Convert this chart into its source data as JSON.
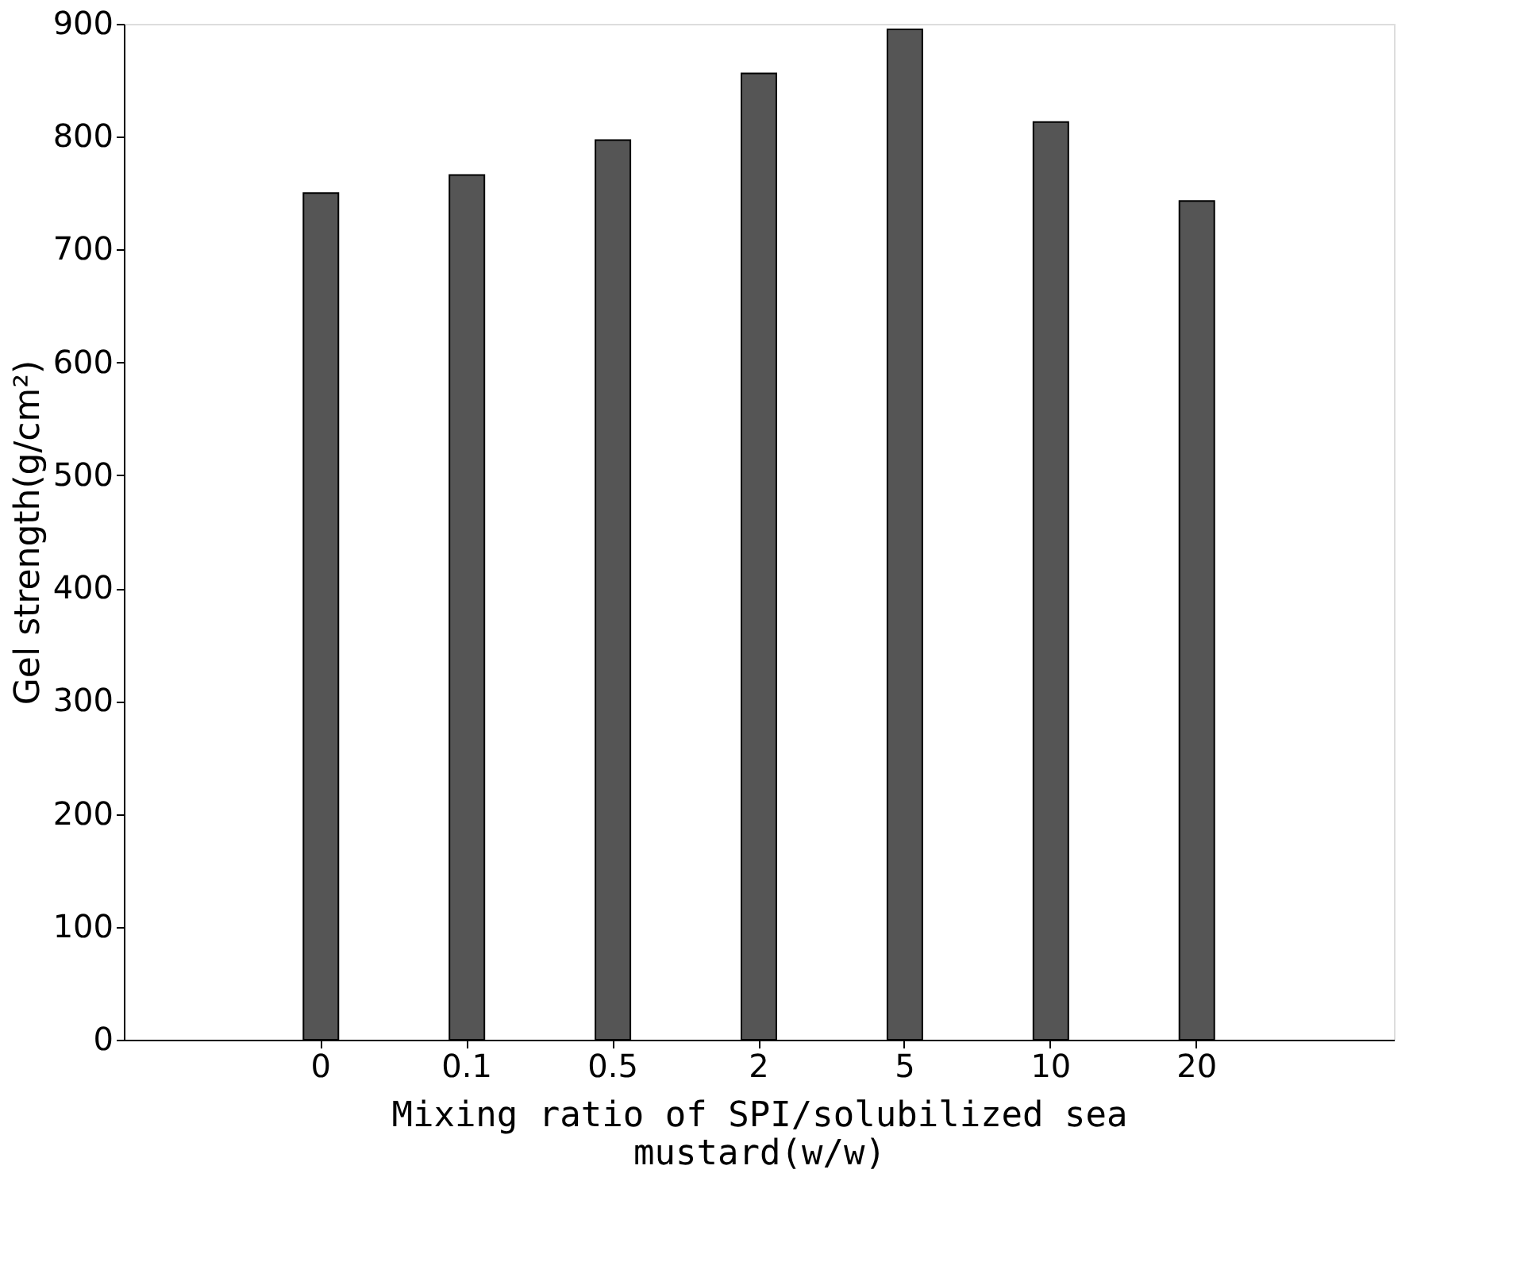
{
  "chart_data": {
    "type": "bar",
    "categories": [
      "0",
      "0.1",
      "0.5",
      "2",
      "5",
      "10",
      "20"
    ],
    "values": [
      750,
      766,
      797,
      856,
      895,
      813,
      743
    ],
    "color": "#555555",
    "xlabel": "Mixing ratio of SPI/solubilized sea mustard(w/w)",
    "ylabel": "Gel strength(g/cm²)",
    "ylim": [
      0,
      900
    ],
    "yticks": [
      0,
      100,
      200,
      300,
      400,
      500,
      600,
      700,
      800,
      900
    ],
    "grid": false
  }
}
